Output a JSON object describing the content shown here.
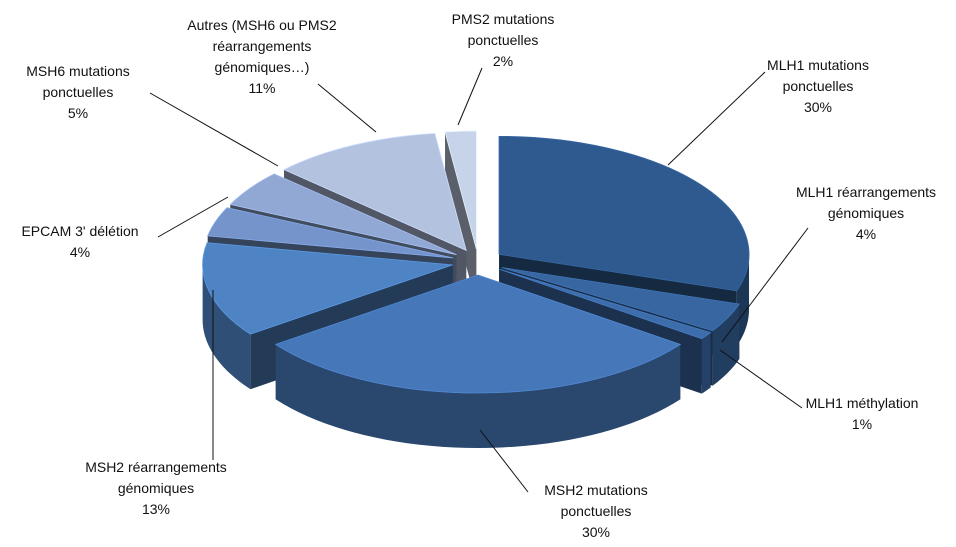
{
  "chart_data": {
    "type": "pie",
    "categories": [
      "MLH1 mutations ponctuelles",
      "MLH1 réarrangements génomiques",
      "MLH1 méthylation",
      "MSH2 mutations ponctuelles",
      "MSH2 réarrangements génomiques",
      "EPCAM 3' délétion",
      "MSH6 mutations ponctuelles",
      "Autres (MSH6 ou PMS2 réarrangements génomiques…)",
      "PMS2 mutations ponctuelles"
    ],
    "values": [
      30,
      4,
      1,
      30,
      13,
      4,
      5,
      11,
      2
    ],
    "value_labels": [
      "30%",
      "4%",
      "1%",
      "30%",
      "13%",
      "4%",
      "5%",
      "11%",
      "2%"
    ],
    "colors": [
      "#2f5a8f",
      "#3766a0",
      "#3d6dab",
      "#4677b8",
      "#4f84c4",
      "#7594cb",
      "#90a8d3",
      "#b3c2df",
      "#c7d3e9"
    ]
  }
}
